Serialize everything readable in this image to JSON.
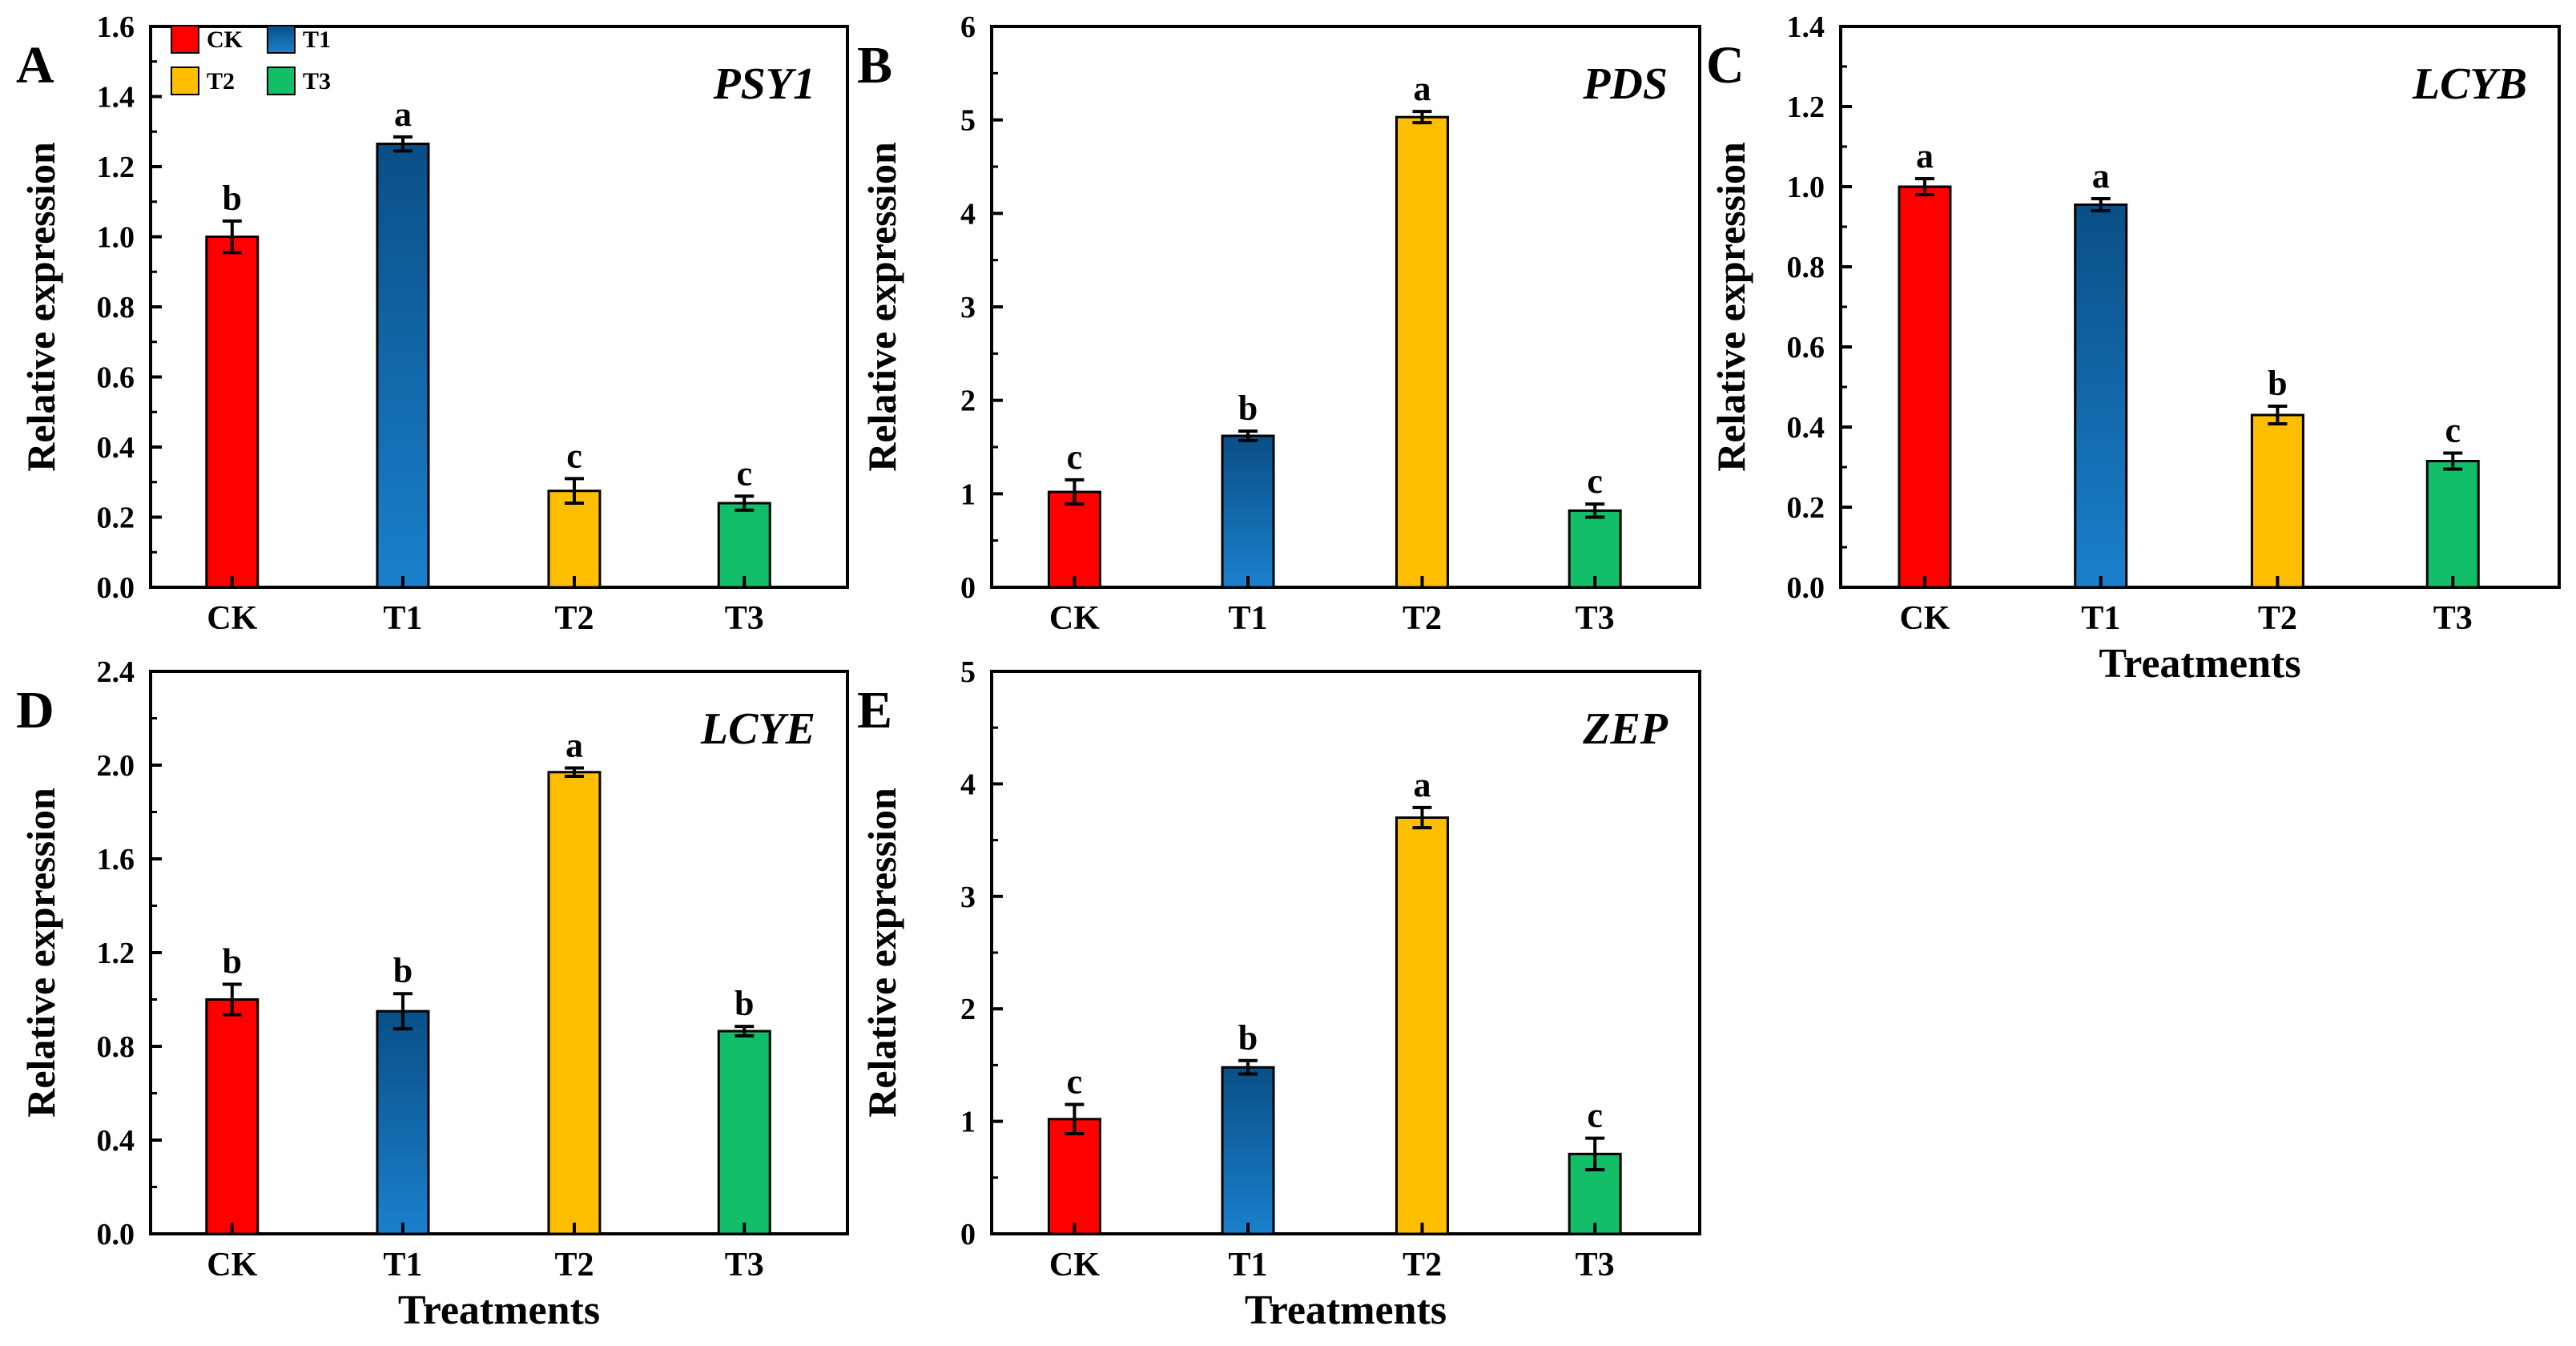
{
  "legend": [
    {
      "label": "CK",
      "color": "#ff0000"
    },
    {
      "label": "T1",
      "color": "#0d66a8"
    },
    {
      "label": "T2",
      "color": "#ffbf00"
    },
    {
      "label": "T3",
      "color": "#12be68"
    }
  ],
  "chart_data": [
    {
      "type": "bar",
      "panel": "A",
      "title": "PSY1",
      "xlabel": "",
      "ylabel": "Relative expression",
      "categories": [
        "CK",
        "T1",
        "T2",
        "T3"
      ],
      "values": [
        1.0,
        1.265,
        0.275,
        0.24
      ],
      "errors": [
        0.045,
        0.02,
        0.035,
        0.02
      ],
      "letters": [
        "b",
        "a",
        "c",
        "c"
      ],
      "ylim": [
        0,
        1.6
      ],
      "yticks": [
        "0.0",
        "0.2",
        "0.4",
        "0.6",
        "0.8",
        "1.0",
        "1.2",
        "1.4",
        "1.6"
      ],
      "legend": true
    },
    {
      "type": "bar",
      "panel": "B",
      "title": "PDS",
      "xlabel": "",
      "ylabel": "Relative expression",
      "categories": [
        "CK",
        "T1",
        "T2",
        "T3"
      ],
      "values": [
        1.02,
        1.62,
        5.03,
        0.82
      ],
      "errors": [
        0.13,
        0.05,
        0.06,
        0.07
      ],
      "letters": [
        "c",
        "b",
        "a",
        "c"
      ],
      "ylim": [
        0,
        6
      ],
      "yticks": [
        "0",
        "1",
        "2",
        "3",
        "4",
        "5",
        "6"
      ],
      "legend": false
    },
    {
      "type": "bar",
      "panel": "C",
      "title": "LCYB",
      "xlabel": "Treatments",
      "ylabel": "Relative expression",
      "categories": [
        "CK",
        "T1",
        "T2",
        "T3"
      ],
      "values": [
        1.0,
        0.955,
        0.43,
        0.315
      ],
      "errors": [
        0.02,
        0.015,
        0.022,
        0.02
      ],
      "letters": [
        "a",
        "a",
        "b",
        "c"
      ],
      "ylim": [
        0,
        1.4
      ],
      "yticks": [
        "0.0",
        "0.2",
        "0.4",
        "0.6",
        "0.8",
        "1.0",
        "1.2",
        "1.4"
      ],
      "legend": false
    },
    {
      "type": "bar",
      "panel": "D",
      "title": "LCYE",
      "xlabel": "Treatments",
      "ylabel": "Relative expression",
      "categories": [
        "CK",
        "T1",
        "T2",
        "T3"
      ],
      "values": [
        1.0,
        0.95,
        1.97,
        0.865
      ],
      "errors": [
        0.065,
        0.075,
        0.018,
        0.02
      ],
      "letters": [
        "b",
        "b",
        "a",
        "b"
      ],
      "ylim": [
        0,
        2.4
      ],
      "yticks": [
        "0.0",
        "0.4",
        "0.8",
        "1.2",
        "1.6",
        "2.0",
        "2.4"
      ],
      "legend": false
    },
    {
      "type": "bar",
      "panel": "E",
      "title": "ZEP",
      "xlabel": "Treatments",
      "ylabel": "Relative expression",
      "categories": [
        "CK",
        "T1",
        "T2",
        "T3"
      ],
      "values": [
        1.02,
        1.48,
        3.7,
        0.71
      ],
      "errors": [
        0.13,
        0.06,
        0.09,
        0.14
      ],
      "letters": [
        "c",
        "b",
        "a",
        "c"
      ],
      "ylim": [
        0,
        5
      ],
      "yticks": [
        "0",
        "1",
        "2",
        "3",
        "4",
        "5"
      ],
      "legend": false
    }
  ]
}
